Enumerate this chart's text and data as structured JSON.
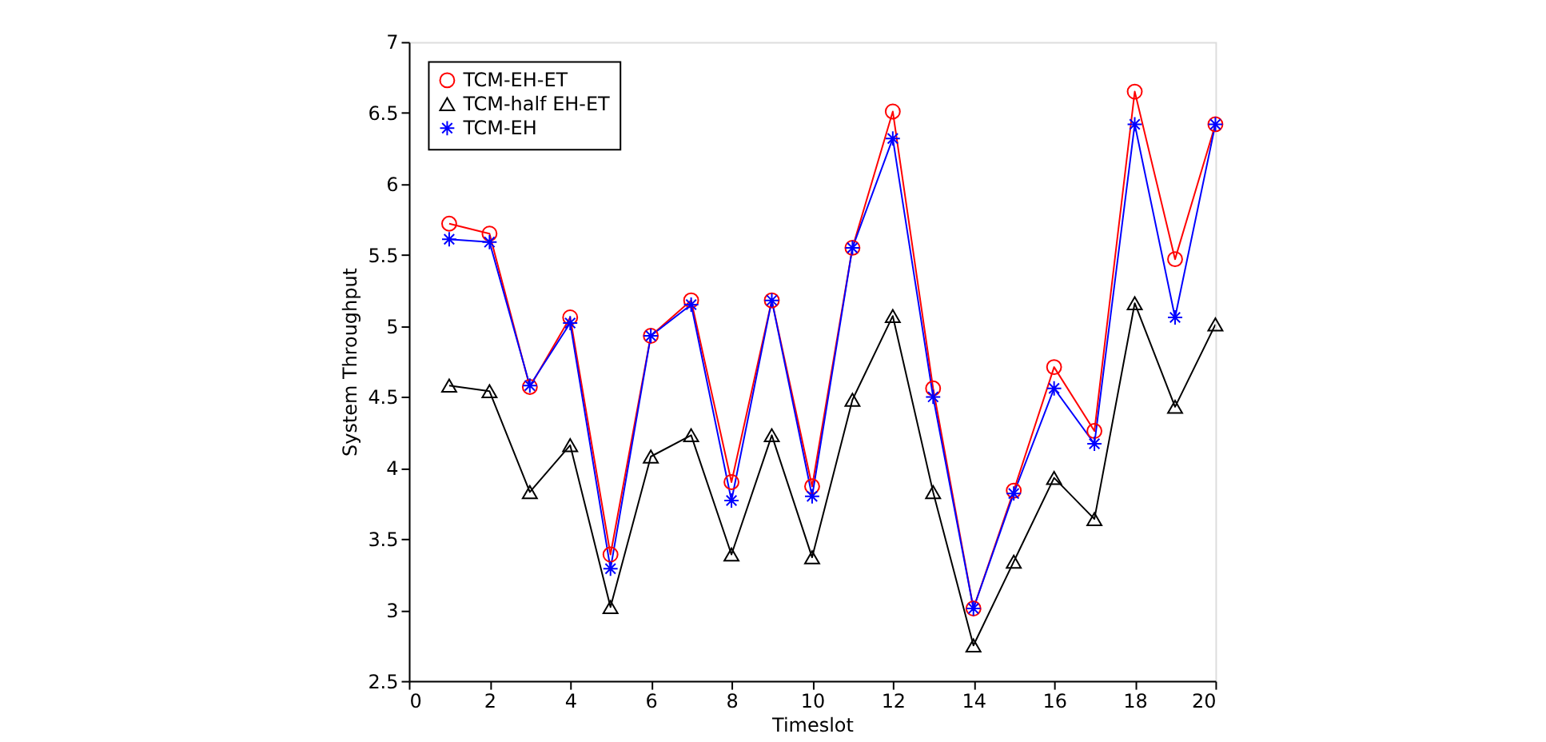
{
  "chart_data": {
    "type": "line",
    "xlabel": "Timeslot",
    "ylabel": "System Throughput",
    "x": [
      1,
      2,
      3,
      4,
      5,
      6,
      7,
      8,
      9,
      10,
      11,
      12,
      13,
      14,
      15,
      16,
      17,
      18,
      19,
      20
    ],
    "series": [
      {
        "name": "TCM-EH-ET",
        "color": "#ff0000",
        "marker": "circle",
        "values": [
          5.72,
          5.65,
          4.57,
          5.06,
          3.39,
          4.93,
          5.18,
          3.9,
          5.18,
          3.87,
          5.55,
          6.51,
          4.56,
          3.01,
          3.84,
          4.71,
          4.26,
          6.65,
          5.47,
          6.42
        ]
      },
      {
        "name": "TCM-half EH-ET",
        "color": "#000000",
        "marker": "triangle",
        "values": [
          4.58,
          4.54,
          3.83,
          4.16,
          3.02,
          4.08,
          4.23,
          3.39,
          4.23,
          3.37,
          4.48,
          5.07,
          3.83,
          2.75,
          3.34,
          3.93,
          3.64,
          5.16,
          4.43,
          5.01
        ]
      },
      {
        "name": "TCM-EH",
        "color": "#0000ff",
        "marker": "cross",
        "values": [
          5.61,
          5.59,
          4.58,
          5.02,
          3.29,
          4.93,
          5.15,
          3.77,
          5.18,
          3.8,
          5.55,
          6.32,
          4.5,
          3.01,
          3.82,
          4.56,
          4.17,
          6.42,
          5.06,
          6.42
        ]
      }
    ],
    "xlim": [
      0,
      20
    ],
    "xticks": [
      0,
      2,
      4,
      6,
      8,
      10,
      12,
      14,
      16,
      18,
      20
    ],
    "ylim": [
      2.5,
      7
    ],
    "yticks": [
      2.5,
      3,
      3.5,
      4,
      4.5,
      5,
      5.5,
      6,
      6.5,
      7
    ],
    "grid": false,
    "legend": "top left",
    "line_style": "solid"
  }
}
